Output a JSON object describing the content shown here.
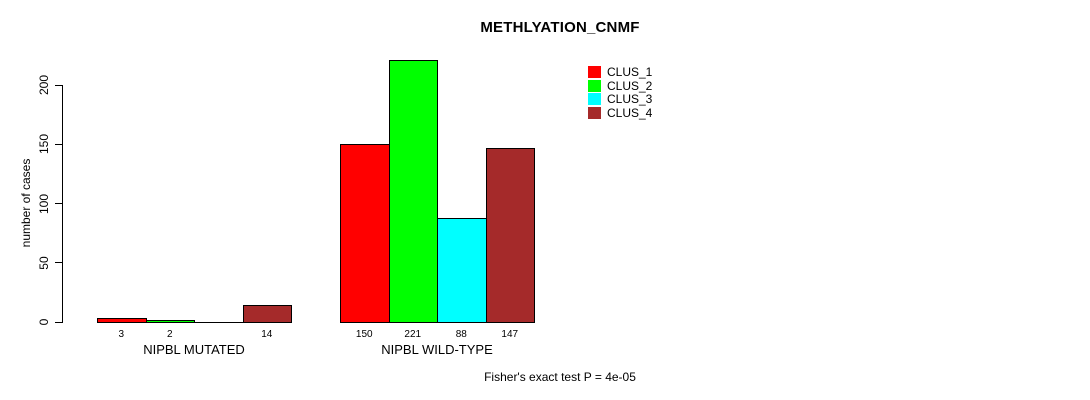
{
  "chart_data": {
    "type": "bar",
    "title": "METHLYATION_CNMF",
    "ylabel": "number of cases",
    "xlabel": "",
    "ylim": [
      0,
      200
    ],
    "y_ticks": [
      0,
      50,
      100,
      150,
      200
    ],
    "grid": false,
    "legend_position": "top-right",
    "series": [
      {
        "name": "CLUS_1",
        "color": "#FF0000"
      },
      {
        "name": "CLUS_2",
        "color": "#00FF00"
      },
      {
        "name": "CLUS_3",
        "color": "#00FFFF"
      },
      {
        "name": "CLUS_4",
        "color": "#A52A2A"
      }
    ],
    "groups": [
      {
        "label": "NIPBL MUTATED",
        "values": [
          3,
          2,
          0,
          14
        ],
        "bar_labels": [
          "3",
          "2",
          "",
          "14"
        ]
      },
      {
        "label": "NIPBL WILD-TYPE",
        "values": [
          150,
          221,
          88,
          147
        ],
        "bar_labels": [
          "150",
          "221",
          "88",
          "147"
        ]
      }
    ],
    "annotation": "Fisher's exact test P = 4e-05"
  },
  "colors": {
    "axis": "#000000",
    "background": "#FFFFFF",
    "bar_border": "#000000"
  }
}
